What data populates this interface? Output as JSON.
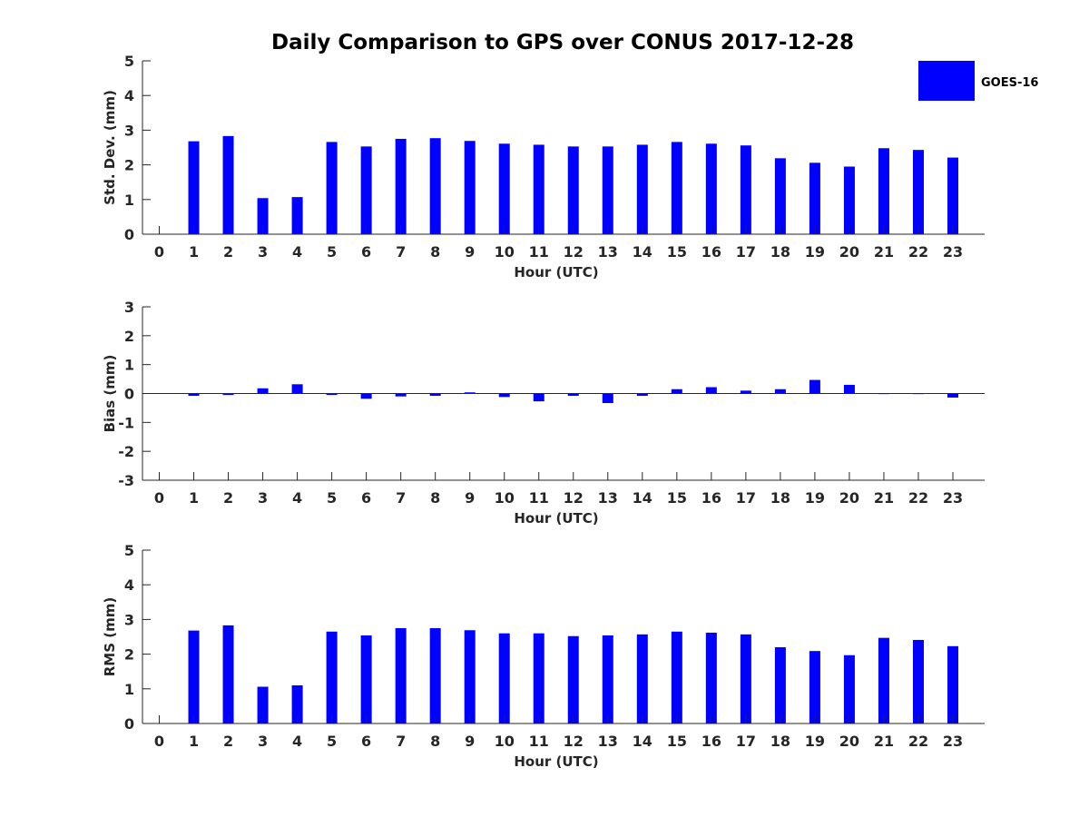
{
  "chart_data": {
    "type": "bar",
    "title": "Daily Comparison to GPS over CONUS 2017-12-28",
    "categories": [
      "0",
      "1",
      "2",
      "3",
      "4",
      "5",
      "6",
      "7",
      "8",
      "9",
      "10",
      "11",
      "12",
      "13",
      "14",
      "15",
      "16",
      "17",
      "18",
      "19",
      "20",
      "21",
      "22",
      "23"
    ],
    "legend": {
      "label": "GOES-16",
      "position": "top-right"
    },
    "series_color": "#0000ff",
    "panels": [
      {
        "ylabel": "Std. Dev. (mm)",
        "xlabel": "Hour (UTC)",
        "ylim": [
          0,
          5
        ],
        "yticks": [
          "0",
          "1",
          "2",
          "3",
          "4",
          "5"
        ],
        "values": [
          null,
          2.68,
          2.83,
          1.04,
          1.07,
          2.66,
          2.53,
          2.75,
          2.77,
          2.69,
          2.61,
          2.58,
          2.53,
          2.53,
          2.58,
          2.66,
          2.61,
          2.56,
          2.19,
          2.06,
          1.95,
          2.48,
          2.43,
          2.21
        ]
      },
      {
        "ylabel": "Bias (mm)",
        "xlabel": "Hour (UTC)",
        "ylim": [
          -3,
          3
        ],
        "yticks": [
          "-3",
          "-2",
          "-1",
          "0",
          "1",
          "2",
          "3"
        ],
        "values": [
          null,
          -0.08,
          -0.05,
          0.18,
          0.32,
          -0.05,
          -0.18,
          -0.1,
          -0.08,
          0.04,
          -0.12,
          -0.27,
          -0.08,
          -0.33,
          -0.08,
          0.15,
          0.22,
          0.1,
          0.15,
          0.47,
          0.3,
          -0.02,
          -0.02,
          -0.14
        ]
      },
      {
        "ylabel": "RMS (mm)",
        "xlabel": "Hour (UTC)",
        "ylim": [
          0,
          5
        ],
        "yticks": [
          "0",
          "1",
          "2",
          "3",
          "4",
          "5"
        ],
        "values": [
          null,
          2.68,
          2.83,
          1.06,
          1.1,
          2.65,
          2.54,
          2.75,
          2.75,
          2.69,
          2.6,
          2.6,
          2.52,
          2.54,
          2.57,
          2.65,
          2.62,
          2.57,
          2.2,
          2.09,
          1.97,
          2.47,
          2.41,
          2.23
        ]
      }
    ]
  }
}
